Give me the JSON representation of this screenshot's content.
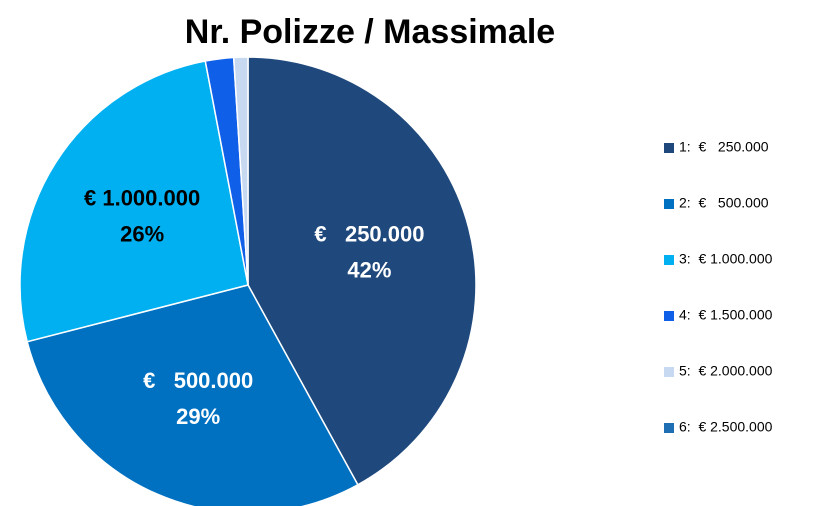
{
  "chart_data": {
    "type": "pie",
    "title": "Nr. Polizze / Massimale",
    "categories": [
      "1:  €   250.000",
      "2:  €   500.000",
      "3:  € 1.000.000",
      "4:  € 1.500.000",
      "5:  € 2.000.000",
      "6:  € 2.500.000"
    ],
    "slice_names": [
      "€   250.000",
      "€   500.000",
      "€ 1.000.000",
      null,
      null,
      null
    ],
    "values": [
      42,
      29,
      26,
      2,
      1,
      0
    ],
    "value_labels": [
      "42%",
      "29%",
      "26%",
      null,
      null,
      null
    ],
    "colors": [
      "#1f497d",
      "#0070c0",
      "#00b0f0",
      "#0f5fe8",
      "#c6d9f1",
      "#1f6fb5"
    ],
    "label_colors": [
      "#ffffff",
      "#ffffff",
      "#000000",
      null,
      null,
      null
    ],
    "legend": "right"
  }
}
